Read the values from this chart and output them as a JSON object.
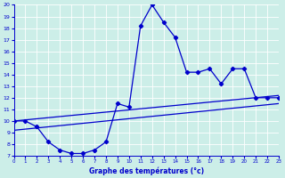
{
  "xlabel": "Graphe des températures (°c)",
  "bg_color": "#cceee8",
  "line_color": "#0000cc",
  "xlim": [
    0,
    23
  ],
  "ylim": [
    7,
    20
  ],
  "xticks": [
    0,
    1,
    2,
    3,
    4,
    5,
    6,
    7,
    8,
    9,
    10,
    11,
    12,
    13,
    14,
    15,
    16,
    17,
    18,
    19,
    20,
    21,
    22,
    23
  ],
  "yticks": [
    7,
    8,
    9,
    10,
    11,
    12,
    13,
    14,
    15,
    16,
    17,
    18,
    19,
    20
  ],
  "main_x": [
    0,
    1,
    2,
    3,
    4,
    5,
    6,
    7,
    8,
    9,
    10,
    11,
    12,
    13,
    14,
    15,
    16,
    17,
    18,
    19,
    20,
    21,
    22,
    23
  ],
  "main_y": [
    10,
    10,
    9.5,
    8.2,
    7.5,
    7.2,
    7.2,
    7.5,
    8.2,
    11.5,
    11.2,
    18.2,
    20.0,
    18.5,
    17.2,
    14.2,
    14.2,
    14.5,
    13.2,
    14.5,
    14.5,
    12.0,
    12.0,
    12.0
  ],
  "trend1_x": [
    0,
    23
  ],
  "trend1_y": [
    10.0,
    12.2
  ],
  "trend2_x": [
    0,
    23
  ],
  "trend2_y": [
    9.2,
    11.5
  ]
}
